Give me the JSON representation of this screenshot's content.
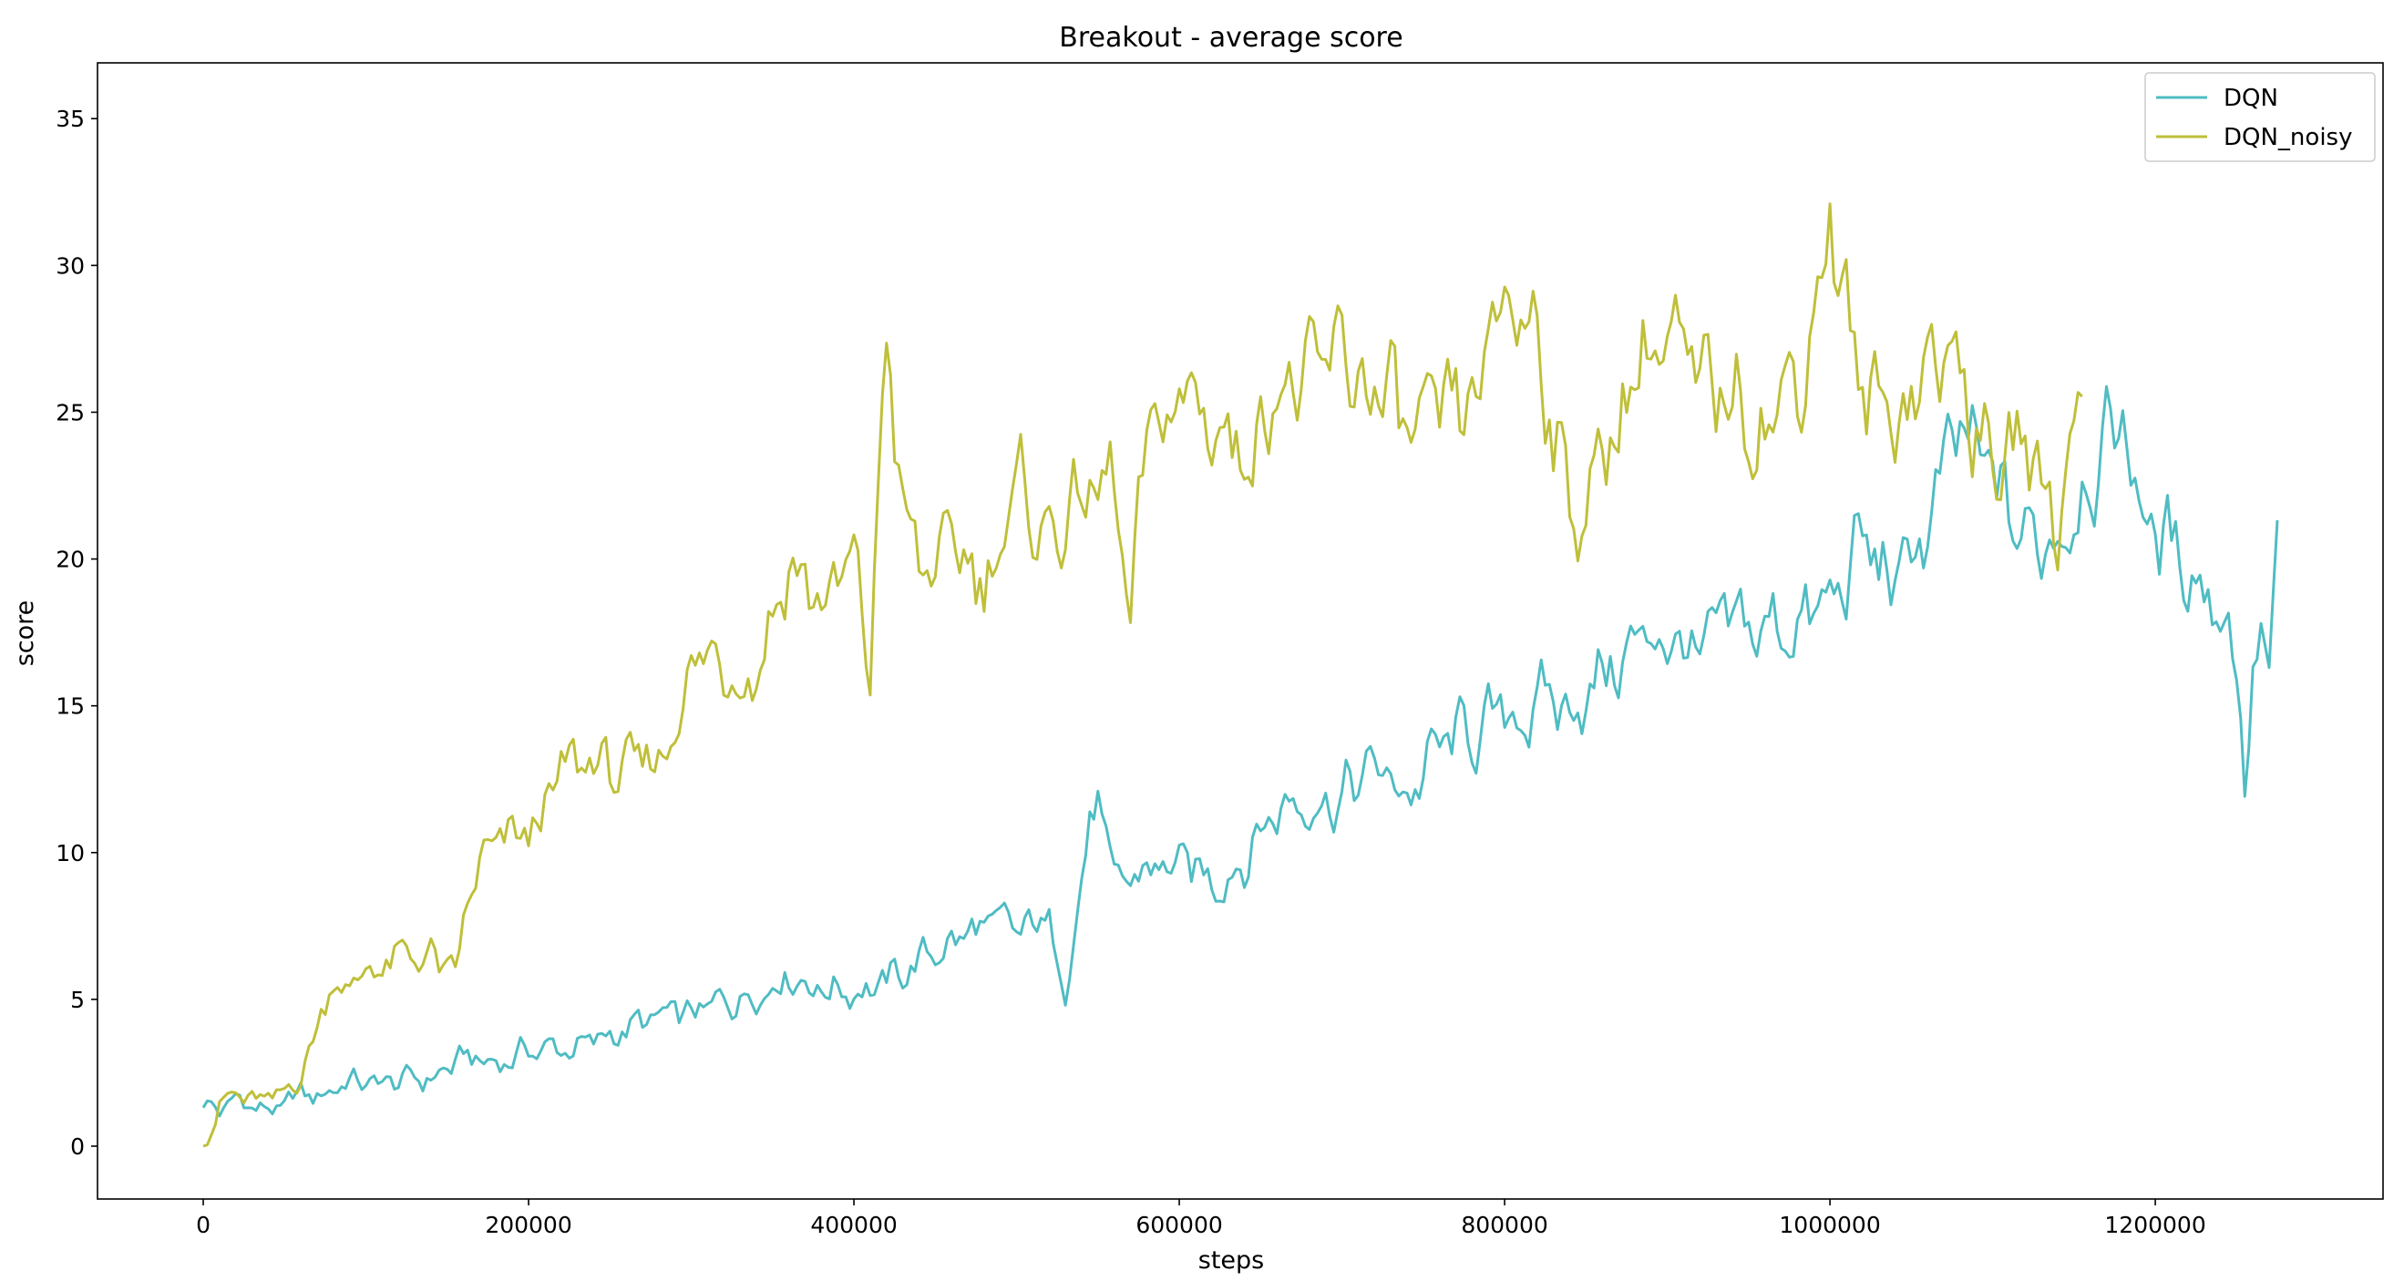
{
  "chart_data": {
    "type": "line",
    "title": "Breakout - average score",
    "xlabel": "steps",
    "ylabel": "score",
    "xlim": [
      -65000,
      1340000
    ],
    "ylim": [
      -1.8,
      36.9
    ],
    "x_ticks": [
      0,
      200000,
      400000,
      600000,
      800000,
      1000000,
      1200000
    ],
    "x_tick_labels": [
      "0",
      "200000",
      "400000",
      "600000",
      "800000",
      "1000000",
      "1200000"
    ],
    "y_ticks": [
      0,
      5,
      10,
      15,
      20,
      25,
      30,
      35
    ],
    "y_tick_labels": [
      "0",
      "5",
      "10",
      "15",
      "20",
      "25",
      "30",
      "35"
    ],
    "grid": false,
    "legend_position": "top-right",
    "series": [
      {
        "name": "DQN",
        "color": "#4fbcc3",
        "x": [
          0,
          10000,
          20000,
          30000,
          40000,
          50000,
          60000,
          70000,
          80000,
          90000,
          100000,
          120000,
          140000,
          160000,
          180000,
          200000,
          220000,
          240000,
          260000,
          280000,
          300000,
          320000,
          340000,
          360000,
          380000,
          400000,
          420000,
          440000,
          460000,
          480000,
          500000,
          520000,
          530000,
          540000,
          550000,
          560000,
          580000,
          600000,
          620000,
          640000,
          660000,
          680000,
          700000,
          720000,
          740000,
          760000,
          780000,
          800000,
          820000,
          840000,
          860000,
          880000,
          900000,
          920000,
          940000,
          960000,
          980000,
          1000000,
          1020000,
          1040000,
          1060000,
          1080000,
          1100000,
          1120000,
          1140000,
          1160000,
          1180000,
          1200000,
          1220000,
          1240000,
          1250000,
          1255000,
          1260000,
          1265000,
          1270000,
          1275000
        ],
        "values": [
          1.5,
          1.2,
          1.6,
          1.4,
          1.2,
          1.3,
          1.8,
          1.6,
          2.0,
          2.3,
          2.1,
          2.2,
          2.3,
          3.0,
          2.8,
          3.3,
          3.3,
          3.5,
          4.0,
          4.3,
          4.4,
          4.9,
          5.3,
          6.0,
          5.4,
          5.4,
          5.5,
          6.3,
          7.0,
          7.4,
          7.2,
          7.6,
          5.5,
          9.5,
          11.8,
          8.5,
          9.5,
          9.5,
          9.0,
          10.0,
          11.5,
          12.0,
          12.0,
          12.8,
          12.0,
          13.5,
          14.0,
          14.5,
          15.0,
          15.0,
          16.0,
          17.0,
          17.5,
          16.5,
          17.5,
          17.5,
          18.0,
          18.2,
          20.5,
          19.0,
          21.0,
          24.0,
          22.5,
          20.5,
          21.0,
          23.5,
          24.5,
          20.5,
          20.0,
          18.5,
          17.0,
          12.5,
          15.5,
          17.5,
          16.5,
          19.7
        ]
      },
      {
        "name": "DQN_noisy",
        "color": "#bfbf3a",
        "x": [
          0,
          10000,
          20000,
          30000,
          40000,
          50000,
          60000,
          70000,
          80000,
          90000,
          100000,
          120000,
          140000,
          155000,
          160000,
          170000,
          180000,
          200000,
          220000,
          240000,
          260000,
          280000,
          300000,
          320000,
          340000,
          360000,
          380000,
          400000,
          410000,
          420000,
          430000,
          440000,
          460000,
          480000,
          500000,
          520000,
          540000,
          560000,
          570000,
          580000,
          600000,
          620000,
          640000,
          660000,
          680000,
          700000,
          720000,
          740000,
          760000,
          780000,
          800000,
          820000,
          840000,
          860000,
          880000,
          900000,
          920000,
          940000,
          960000,
          980000,
          1000000,
          1020000,
          1040000,
          1060000,
          1080000,
          1100000,
          1120000,
          1140000,
          1155000
        ],
        "values": [
          0.0,
          1.5,
          1.7,
          1.5,
          1.5,
          1.7,
          2.5,
          4.0,
          5.9,
          5.3,
          6.0,
          6.3,
          6.5,
          5.5,
          7.5,
          9.5,
          10.0,
          10.5,
          12.5,
          13.2,
          12.5,
          13.0,
          16.5,
          16.5,
          16.5,
          20.0,
          18.5,
          19.5,
          16.0,
          28.0,
          21.5,
          19.5,
          20.0,
          19.5,
          22.0,
          21.0,
          22.0,
          22.5,
          17.5,
          23.5,
          25.5,
          25.0,
          23.5,
          26.5,
          25.5,
          26.5,
          26.0,
          24.0,
          24.0,
          25.0,
          28.5,
          28.5,
          21.5,
          23.0,
          27.0,
          27.5,
          25.0,
          26.0,
          25.0,
          26.0,
          32.0,
          25.0,
          25.0,
          27.0,
          26.5,
          23.0,
          24.0,
          21.0,
          27.5
        ]
      }
    ]
  }
}
